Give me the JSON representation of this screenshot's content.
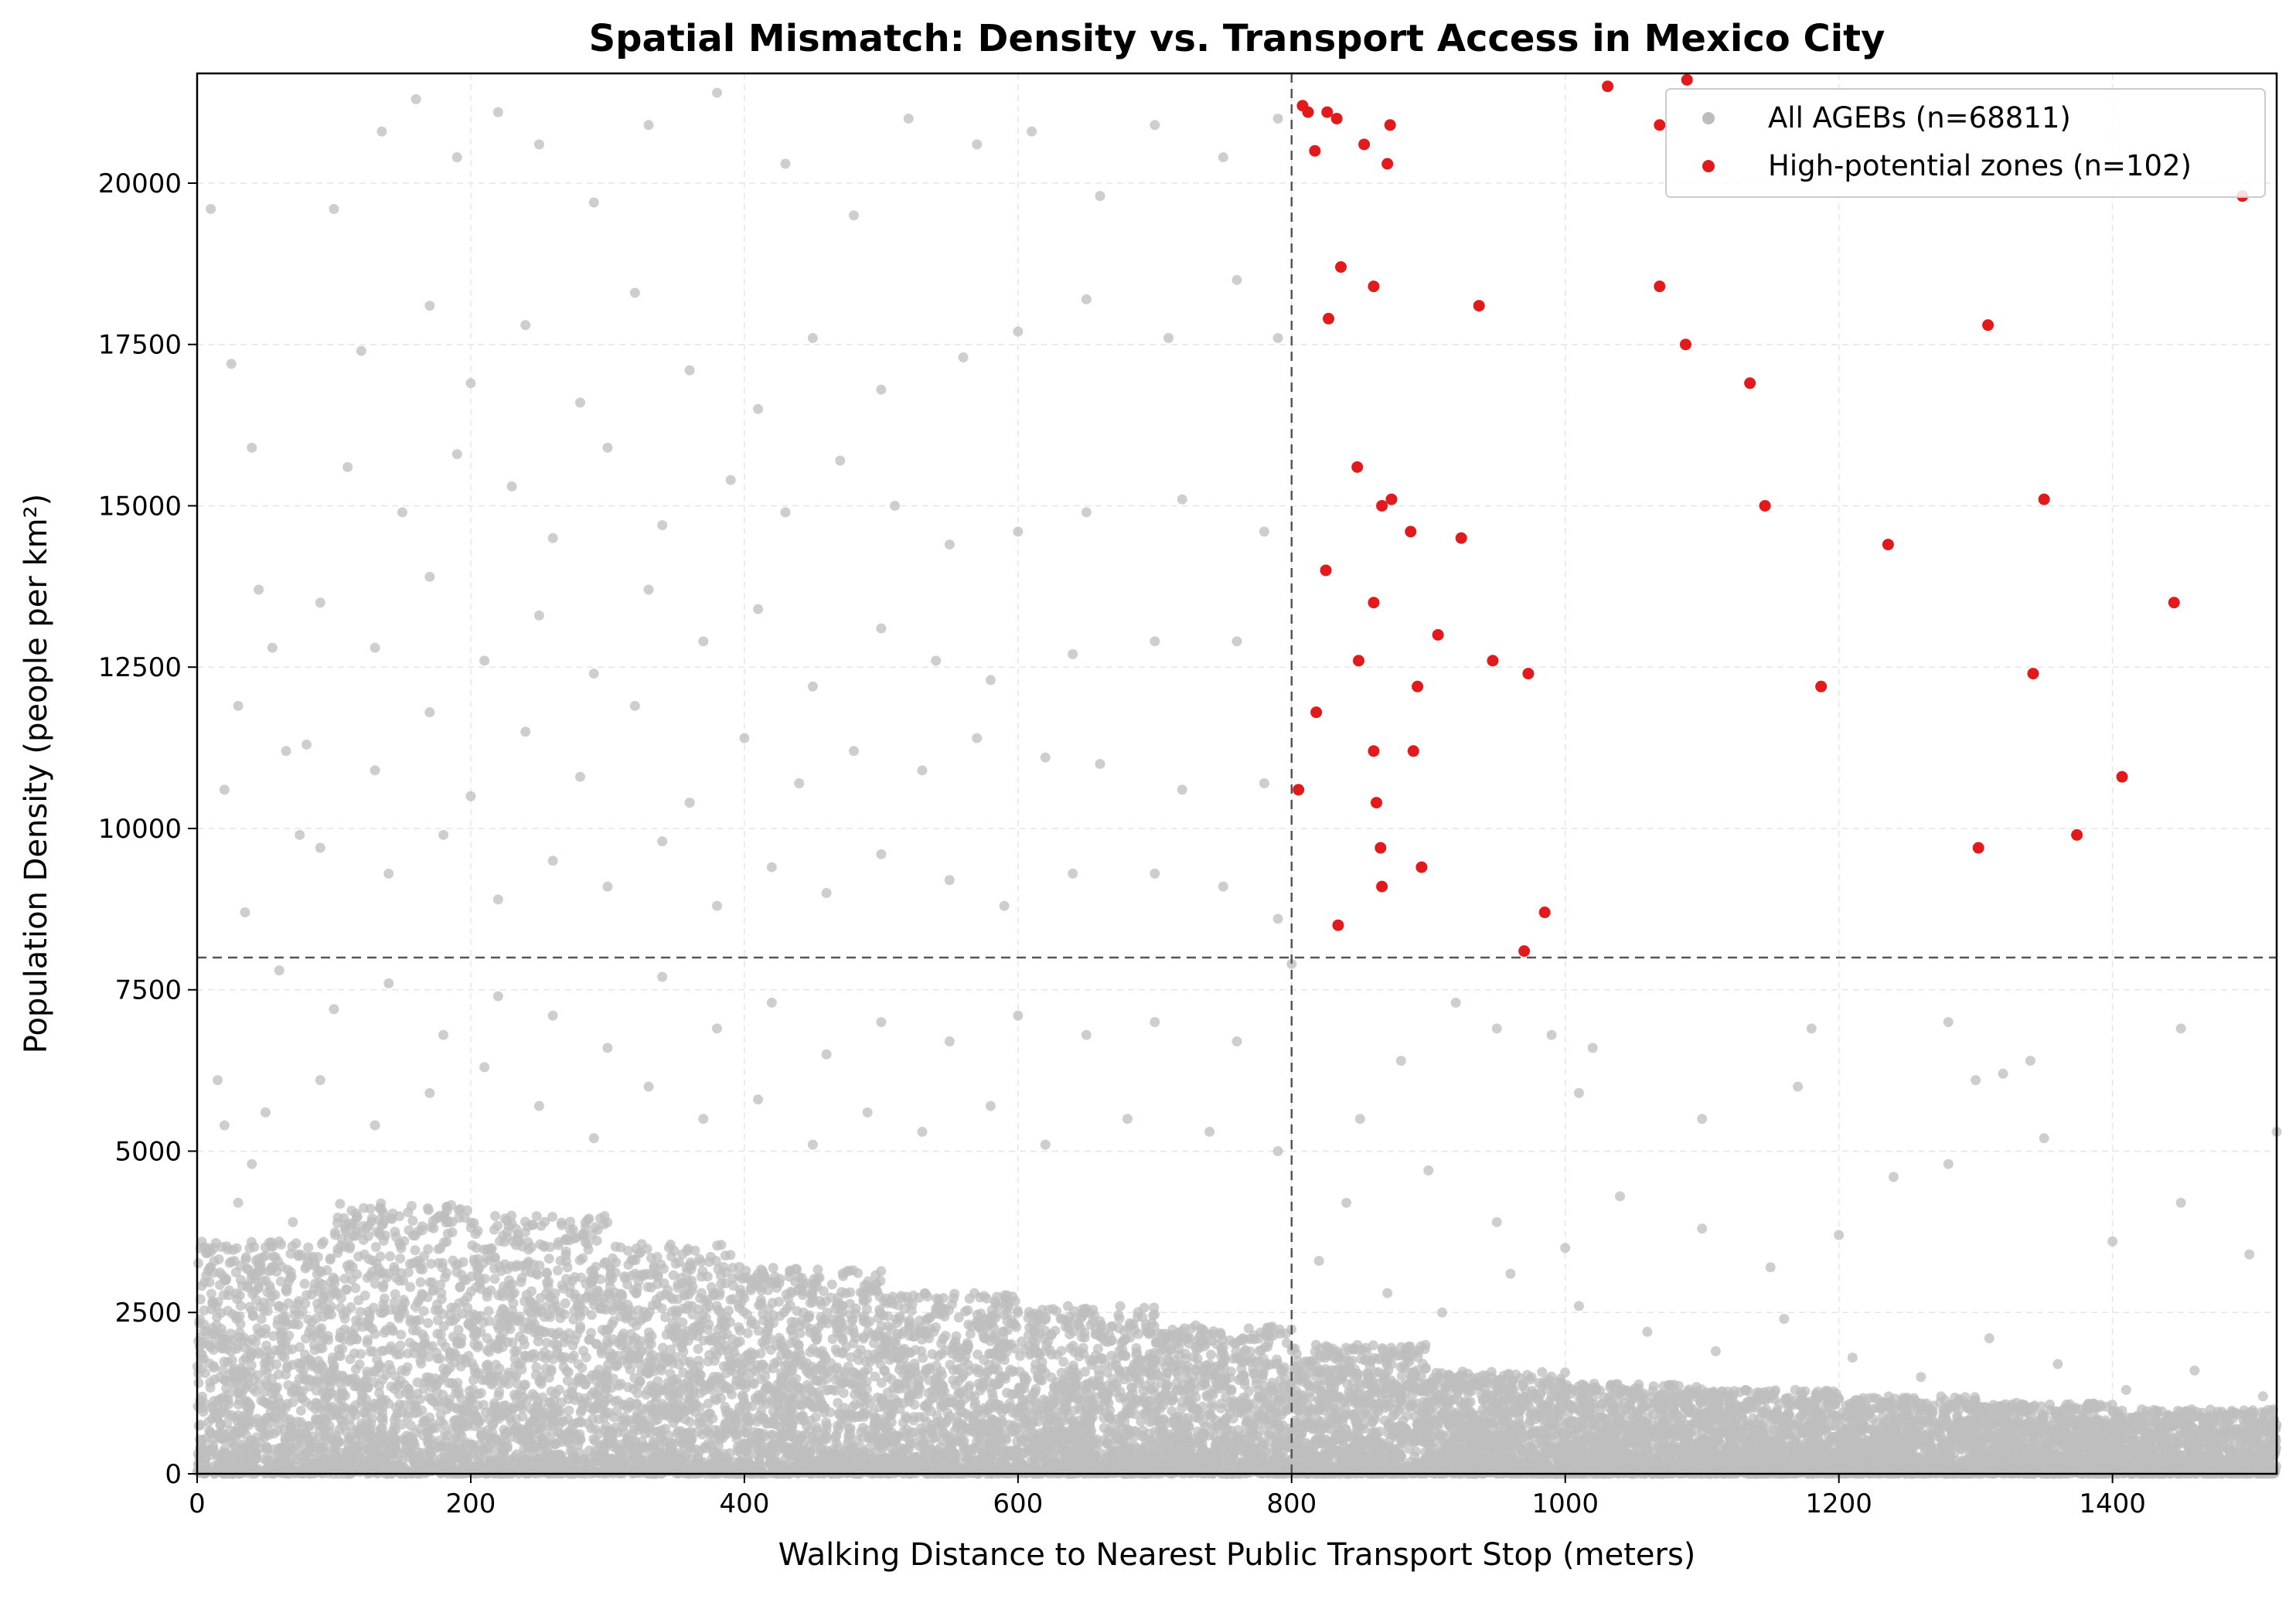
{
  "chart_data": {
    "type": "scatter",
    "title": "Spatial Mismatch: Density vs. Transport Access in Mexico City",
    "xlabel": "Walking Distance to Nearest Public Transport Stop (meters)",
    "ylabel": "Population Density (people per km²)",
    "xlim": [
      0,
      1520
    ],
    "ylim": [
      0,
      21700
    ],
    "xticks": [
      0,
      200,
      400,
      600,
      800,
      1000,
      1200,
      1400
    ],
    "yticks": [
      0,
      2500,
      5000,
      7500,
      10000,
      12500,
      15000,
      17500,
      20000
    ],
    "grid": true,
    "legend_position": "top-right",
    "thresholds": {
      "x": 800,
      "y": 8000
    },
    "colors": {
      "background_points": "#bdbdbd",
      "high_points": "#e31a1c",
      "threshold_line": "#555555",
      "grid": "#e6e6e6"
    },
    "series": [
      {
        "name": "All AGEBs (n=68811)",
        "color": "#bdbdbd",
        "points": [
          [
            100,
            19600
          ],
          [
            135,
            20800
          ],
          [
            160,
            21300
          ],
          [
            190,
            20400
          ],
          [
            220,
            21100
          ],
          [
            250,
            20600
          ],
          [
            290,
            19700
          ],
          [
            330,
            20900
          ],
          [
            380,
            21400
          ],
          [
            430,
            20300
          ],
          [
            480,
            19500
          ],
          [
            520,
            21000
          ],
          [
            570,
            20600
          ],
          [
            610,
            20800
          ],
          [
            660,
            19800
          ],
          [
            700,
            20900
          ],
          [
            750,
            20400
          ],
          [
            790,
            21000
          ],
          [
            120,
            17400
          ],
          [
            170,
            18100
          ],
          [
            200,
            16900
          ],
          [
            240,
            17800
          ],
          [
            280,
            16600
          ],
          [
            320,
            18300
          ],
          [
            360,
            17100
          ],
          [
            410,
            16500
          ],
          [
            450,
            17600
          ],
          [
            500,
            16800
          ],
          [
            560,
            17300
          ],
          [
            600,
            17700
          ],
          [
            650,
            18200
          ],
          [
            710,
            17600
          ],
          [
            760,
            18500
          ],
          [
            790,
            17600
          ],
          [
            110,
            15600
          ],
          [
            150,
            14900
          ],
          [
            190,
            15800
          ],
          [
            230,
            15300
          ],
          [
            260,
            14500
          ],
          [
            300,
            15900
          ],
          [
            340,
            14700
          ],
          [
            390,
            15400
          ],
          [
            430,
            14900
          ],
          [
            470,
            15700
          ],
          [
            510,
            15000
          ],
          [
            550,
            14400
          ],
          [
            600,
            14600
          ],
          [
            650,
            14900
          ],
          [
            720,
            15100
          ],
          [
            780,
            14600
          ],
          [
            90,
            13500
          ],
          [
            130,
            12800
          ],
          [
            170,
            13900
          ],
          [
            210,
            12600
          ],
          [
            250,
            13300
          ],
          [
            290,
            12400
          ],
          [
            330,
            13700
          ],
          [
            370,
            12900
          ],
          [
            410,
            13400
          ],
          [
            450,
            12200
          ],
          [
            500,
            13100
          ],
          [
            540,
            12600
          ],
          [
            580,
            12300
          ],
          [
            640,
            12700
          ],
          [
            700,
            12900
          ],
          [
            760,
            12900
          ],
          [
            80,
            11300
          ],
          [
            130,
            10900
          ],
          [
            170,
            11800
          ],
          [
            200,
            10500
          ],
          [
            240,
            11500
          ],
          [
            280,
            10800
          ],
          [
            320,
            11900
          ],
          [
            360,
            10400
          ],
          [
            400,
            11400
          ],
          [
            440,
            10700
          ],
          [
            480,
            11200
          ],
          [
            530,
            10900
          ],
          [
            570,
            11400
          ],
          [
            620,
            11100
          ],
          [
            660,
            11000
          ],
          [
            720,
            10600
          ],
          [
            780,
            10700
          ],
          [
            90,
            9700
          ],
          [
            140,
            9300
          ],
          [
            180,
            9900
          ],
          [
            220,
            8900
          ],
          [
            260,
            9500
          ],
          [
            300,
            9100
          ],
          [
            340,
            9800
          ],
          [
            380,
            8800
          ],
          [
            420,
            9400
          ],
          [
            460,
            9000
          ],
          [
            500,
            9600
          ],
          [
            550,
            9200
          ],
          [
            590,
            8800
          ],
          [
            640,
            9300
          ],
          [
            700,
            9300
          ],
          [
            750,
            9100
          ],
          [
            790,
            8600
          ],
          [
            60,
            7800
          ],
          [
            100,
            7200
          ],
          [
            140,
            7600
          ],
          [
            180,
            6800
          ],
          [
            220,
            7400
          ],
          [
            260,
            7100
          ],
          [
            300,
            6600
          ],
          [
            340,
            7700
          ],
          [
            380,
            6900
          ],
          [
            420,
            7300
          ],
          [
            460,
            6500
          ],
          [
            500,
            7000
          ],
          [
            550,
            6700
          ],
          [
            600,
            7100
          ],
          [
            650,
            6800
          ],
          [
            700,
            7000
          ],
          [
            760,
            6700
          ],
          [
            800,
            7900
          ],
          [
            50,
            5600
          ],
          [
            90,
            6100
          ],
          [
            130,
            5400
          ],
          [
            170,
            5900
          ],
          [
            210,
            6300
          ],
          [
            250,
            5700
          ],
          [
            290,
            5200
          ],
          [
            330,
            6000
          ],
          [
            370,
            5500
          ],
          [
            410,
            5800
          ],
          [
            450,
            5100
          ],
          [
            490,
            5600
          ],
          [
            530,
            5300
          ],
          [
            580,
            5700
          ],
          [
            620,
            5100
          ],
          [
            680,
            5500
          ],
          [
            740,
            5300
          ],
          [
            790,
            5000
          ],
          [
            840,
            4200
          ],
          [
            900,
            4700
          ],
          [
            950,
            3900
          ],
          [
            1000,
            3500
          ],
          [
            1040,
            4300
          ],
          [
            1100,
            3800
          ],
          [
            1150,
            3200
          ],
          [
            1200,
            3700
          ],
          [
            1280,
            4800
          ],
          [
            1320,
            6200
          ],
          [
            1340,
            6400
          ],
          [
            1350,
            5200
          ],
          [
            1400,
            3600
          ],
          [
            1450,
            4200
          ],
          [
            1500,
            3400
          ],
          [
            1520,
            5300
          ],
          [
            850,
            5500
          ],
          [
            880,
            6400
          ],
          [
            920,
            7300
          ],
          [
            950,
            6900
          ],
          [
            990,
            6800
          ],
          [
            1020,
            6600
          ],
          [
            1180,
            6900
          ],
          [
            1280,
            7000
          ],
          [
            1450,
            6900
          ],
          [
            1010,
            5900
          ],
          [
            1100,
            5500
          ],
          [
            1170,
            6000
          ],
          [
            1240,
            4600
          ],
          [
            1300,
            6100
          ],
          [
            820,
            3300
          ],
          [
            870,
            2800
          ],
          [
            910,
            2500
          ],
          [
            960,
            3100
          ],
          [
            1010,
            2600
          ],
          [
            1060,
            2200
          ],
          [
            1110,
            1900
          ],
          [
            1160,
            2400
          ],
          [
            1210,
            1800
          ],
          [
            1260,
            1500
          ],
          [
            1310,
            2100
          ],
          [
            1360,
            1700
          ],
          [
            1410,
            1300
          ],
          [
            1460,
            1600
          ],
          [
            1510,
            1200
          ],
          [
            30,
            4200
          ],
          [
            60,
            3600
          ],
          [
            20,
            5400
          ],
          [
            40,
            4800
          ],
          [
            70,
            3900
          ],
          [
            15,
            6100
          ],
          [
            10,
            19600
          ],
          [
            25,
            17200
          ],
          [
            40,
            15900
          ],
          [
            45,
            13700
          ],
          [
            55,
            12800
          ],
          [
            30,
            11900
          ],
          [
            65,
            11200
          ],
          [
            20,
            10600
          ],
          [
            75,
            9900
          ],
          [
            35,
            8700
          ]
        ],
        "dense_band": [
          {
            "x_range": [
              0,
              100
            ],
            "y_range": [
              0,
              3600
            ]
          },
          {
            "x_range": [
              100,
              200
            ],
            "y_range": [
              0,
              4200
            ]
          },
          {
            "x_range": [
              200,
              300
            ],
            "y_range": [
              0,
              4000
            ]
          },
          {
            "x_range": [
              300,
              400
            ],
            "y_range": [
              0,
              3600
            ]
          },
          {
            "x_range": [
              400,
              500
            ],
            "y_range": [
              0,
              3200
            ]
          },
          {
            "x_range": [
              500,
              600
            ],
            "y_range": [
              0,
              2800
            ]
          },
          {
            "x_range": [
              600,
              700
            ],
            "y_range": [
              0,
              2600
            ]
          },
          {
            "x_range": [
              700,
              800
            ],
            "y_range": [
              0,
              2300
            ]
          },
          {
            "x_range": [
              800,
              900
            ],
            "y_range": [
              0,
              2000
            ]
          },
          {
            "x_range": [
              900,
              1000
            ],
            "y_range": [
              0,
              1600
            ]
          },
          {
            "x_range": [
              1000,
              1100
            ],
            "y_range": [
              0,
              1400
            ]
          },
          {
            "x_range": [
              1100,
              1200
            ],
            "y_range": [
              0,
              1300
            ]
          },
          {
            "x_range": [
              1200,
              1300
            ],
            "y_range": [
              0,
              1200
            ]
          },
          {
            "x_range": [
              1300,
              1400
            ],
            "y_range": [
              0,
              1100
            ]
          },
          {
            "x_range": [
              1400,
              1520
            ],
            "y_range": [
              0,
              1000
            ]
          }
        ]
      },
      {
        "name": "High-potential zones (n=102)",
        "color": "#e31a1c",
        "points": [
          [
            808,
            21200
          ],
          [
            812,
            21100
          ],
          [
            826,
            21100
          ],
          [
            833,
            21000
          ],
          [
            872,
            20900
          ],
          [
            1031,
            21500
          ],
          [
            1089,
            21600
          ],
          [
            1069,
            20900
          ],
          [
            817,
            20500
          ],
          [
            853,
            20600
          ],
          [
            870,
            20300
          ],
          [
            1495,
            19800
          ],
          [
            836,
            18700
          ],
          [
            860,
            18400
          ],
          [
            827,
            17900
          ],
          [
            937,
            18100
          ],
          [
            1069,
            18400
          ],
          [
            1088,
            17500
          ],
          [
            1309,
            17800
          ],
          [
            1135,
            16900
          ],
          [
            848,
            15600
          ],
          [
            873,
            15100
          ],
          [
            866,
            15000
          ],
          [
            1146,
            15000
          ],
          [
            1350,
            15100
          ],
          [
            887,
            14600
          ],
          [
            924,
            14500
          ],
          [
            825,
            14000
          ],
          [
            1236,
            14400
          ],
          [
            860,
            13500
          ],
          [
            1445,
            13500
          ],
          [
            907,
            13000
          ],
          [
            849,
            12600
          ],
          [
            947,
            12600
          ],
          [
            973,
            12400
          ],
          [
            1342,
            12400
          ],
          [
            892,
            12200
          ],
          [
            1187,
            12200
          ],
          [
            818,
            11800
          ],
          [
            860,
            11200
          ],
          [
            889,
            11200
          ],
          [
            805,
            10600
          ],
          [
            862,
            10400
          ],
          [
            1407,
            10800
          ],
          [
            865,
            9700
          ],
          [
            1302,
            9700
          ],
          [
            1374,
            9900
          ],
          [
            895,
            9400
          ],
          [
            866,
            9100
          ],
          [
            985,
            8700
          ],
          [
            834,
            8500
          ],
          [
            970,
            8100
          ]
        ]
      }
    ]
  }
}
